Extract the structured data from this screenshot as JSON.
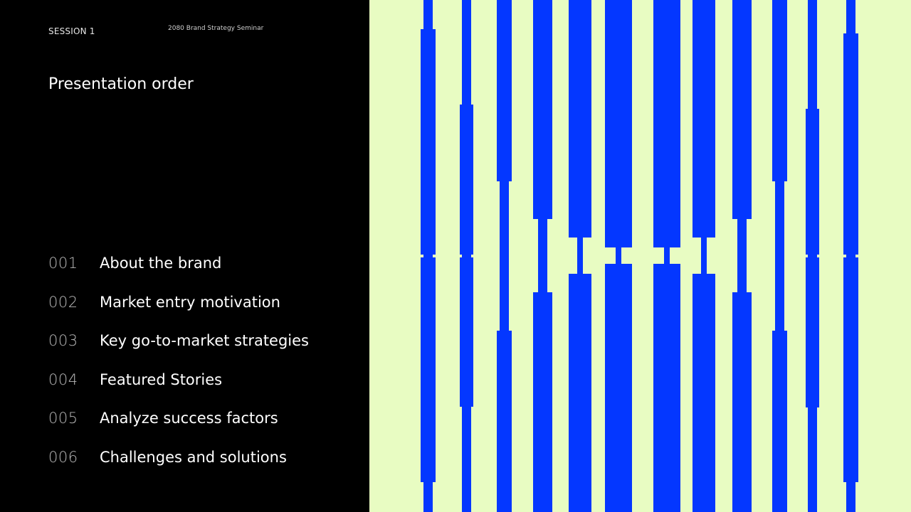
{
  "header": {
    "session": "SESSION 1",
    "seminar": "2080 Brand Strategy Seminar"
  },
  "title": "Presentation order",
  "agenda": [
    {
      "number": "001",
      "label": "About the brand"
    },
    {
      "number": "002",
      "label": "Market entry motivation"
    },
    {
      "number": "003",
      "label": "Key go-to-market strategies"
    },
    {
      "number": "004",
      "label": "Featured Stories"
    },
    {
      "number": "005",
      "label": "Analyze success factors"
    },
    {
      "number": "006",
      "label": "Challenges and solutions"
    }
  ],
  "colors": {
    "background_left": "#000000",
    "background_right": "#e8fcc2",
    "accent": "#0437ff"
  }
}
